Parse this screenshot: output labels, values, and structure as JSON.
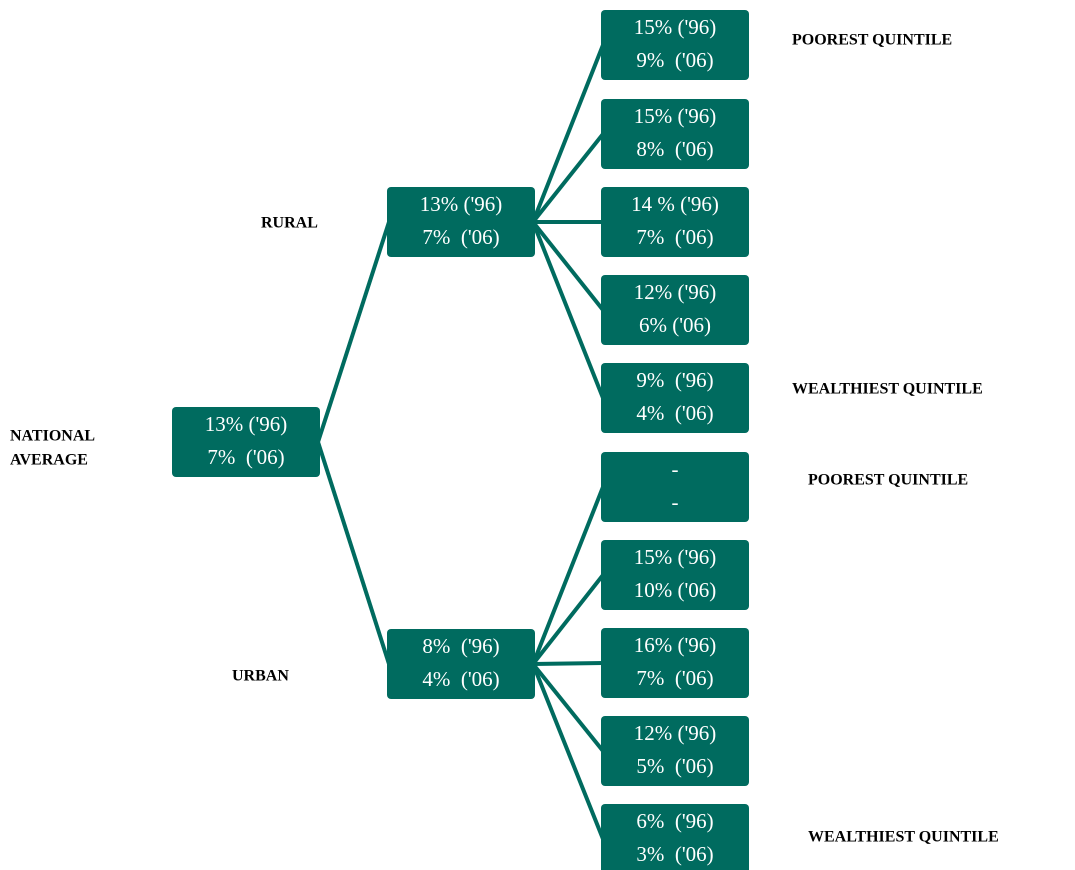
{
  "nodes": [
    {
      "lines": [
        "13% ('96)",
        "7%  ('06)"
      ]
    },
    {
      "lines": [
        "13% ('96)",
        "7%  ('06)"
      ]
    },
    {
      "lines": [
        "8%  ('96)",
        "4%  ('06)"
      ]
    },
    {
      "lines": [
        "15% ('96)",
        "9%  ('06)"
      ]
    },
    {
      "lines": [
        "15% ('96)",
        "8%  ('06)"
      ]
    },
    {
      "lines": [
        "14 % ('96)",
        "7%  ('06)"
      ]
    },
    {
      "lines": [
        "12% ('96)",
        "6% ('06)"
      ]
    },
    {
      "lines": [
        "9%  ('96)",
        "4%  ('06)"
      ]
    },
    {
      "lines": [
        "-",
        "-"
      ]
    },
    {
      "lines": [
        "15% ('96)",
        "10% ('06)"
      ]
    },
    {
      "lines": [
        "16% ('96)",
        "7%  ('06)"
      ]
    },
    {
      "lines": [
        "12% ('96)",
        "5%  ('06)"
      ]
    },
    {
      "lines": [
        "6%  ('96)",
        "3%  ('06)"
      ]
    }
  ],
  "labels": [
    {
      "lines": [
        "NATIONAL",
        "AVERAGE"
      ]
    },
    {
      "lines": [
        "RURAL"
      ]
    },
    {
      "lines": [
        "URBAN"
      ]
    },
    {
      "lines": [
        "POOREST QUINTILE"
      ]
    },
    {
      "lines": [
        "WEALTHIEST QUINTILE"
      ]
    },
    {
      "lines": [
        "POOREST QUINTILE"
      ]
    },
    {
      "lines": [
        "WEALTHIEST QUINTILE"
      ]
    }
  ]
}
